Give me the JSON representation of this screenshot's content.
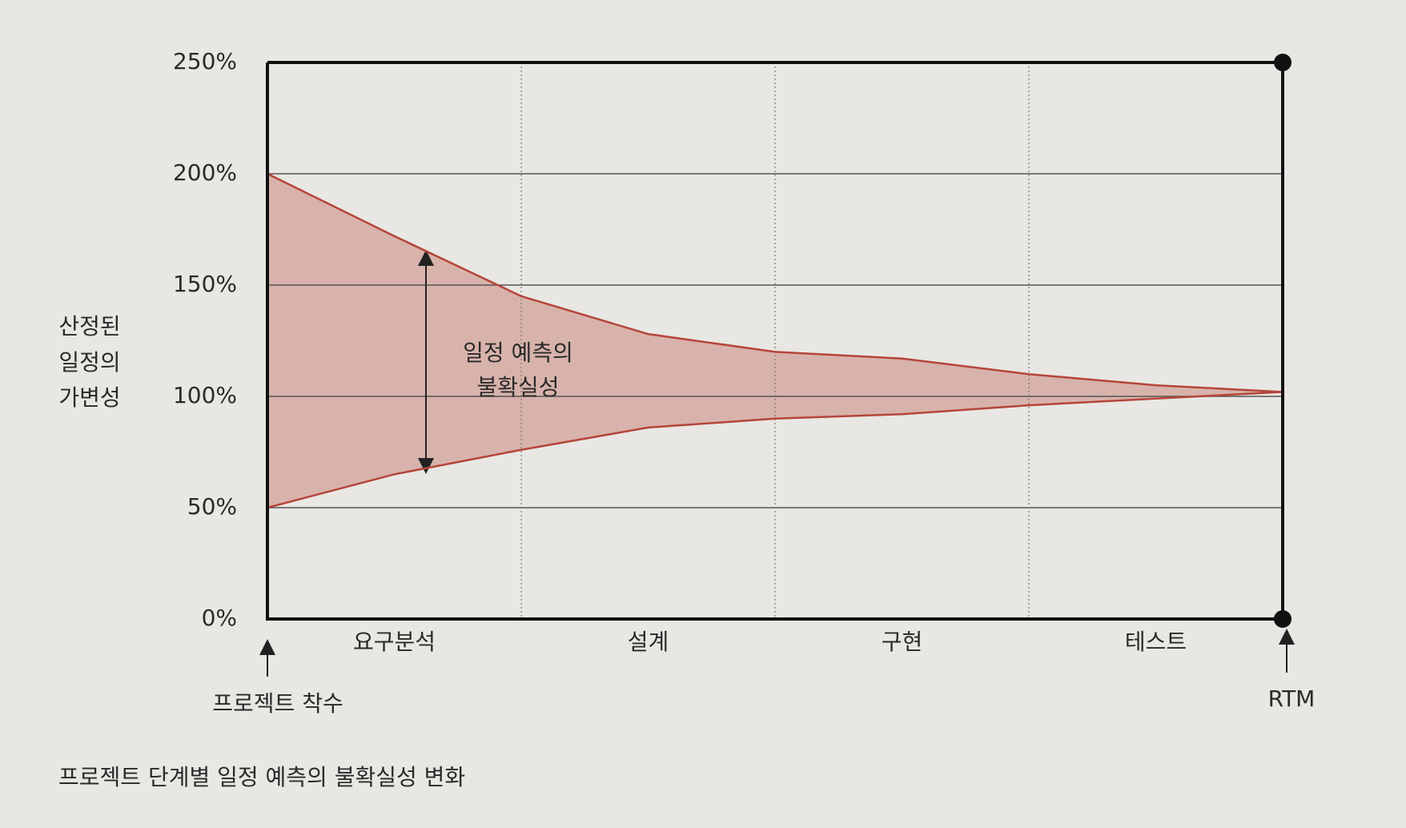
{
  "chart_data": {
    "type": "band",
    "y_label_lines": [
      "산정된",
      "일정의",
      "가변성"
    ],
    "phases": [
      "요구분석",
      "설계",
      "구현",
      "테스트"
    ],
    "start_label": "프로젝트 착수",
    "end_label": "RTM",
    "annotation_lines": [
      "일정 예측의",
      "불확실성"
    ],
    "caption": "프로젝트 단계별 일정 예측의 불확실성 변화",
    "x": [
      0,
      0.5,
      1,
      1.5,
      2,
      2.5,
      3,
      3.5,
      4
    ],
    "series": [
      {
        "color": "#b5453a",
        "values": [
          200,
          172,
          145,
          128,
          120,
          117,
          110,
          105,
          102
        ]
      },
      {
        "color": "#b5453a",
        "values": [
          50,
          65,
          76,
          86,
          90,
          92,
          96,
          99,
          102
        ]
      }
    ],
    "band_color": "#d8b3ab",
    "xlim": [
      0,
      4
    ],
    "xticks": [
      0,
      1,
      2,
      3,
      4
    ],
    "ylim": [
      0,
      250
    ],
    "yticks": [
      {
        "value": 0,
        "label": "0%"
      },
      {
        "value": 50,
        "label": "50%"
      },
      {
        "value": 100,
        "label": "100%"
      },
      {
        "value": 150,
        "label": "150%"
      },
      {
        "value": 200,
        "label": "200%"
      },
      {
        "value": 250,
        "label": "250%"
      }
    ],
    "grid": true
  }
}
